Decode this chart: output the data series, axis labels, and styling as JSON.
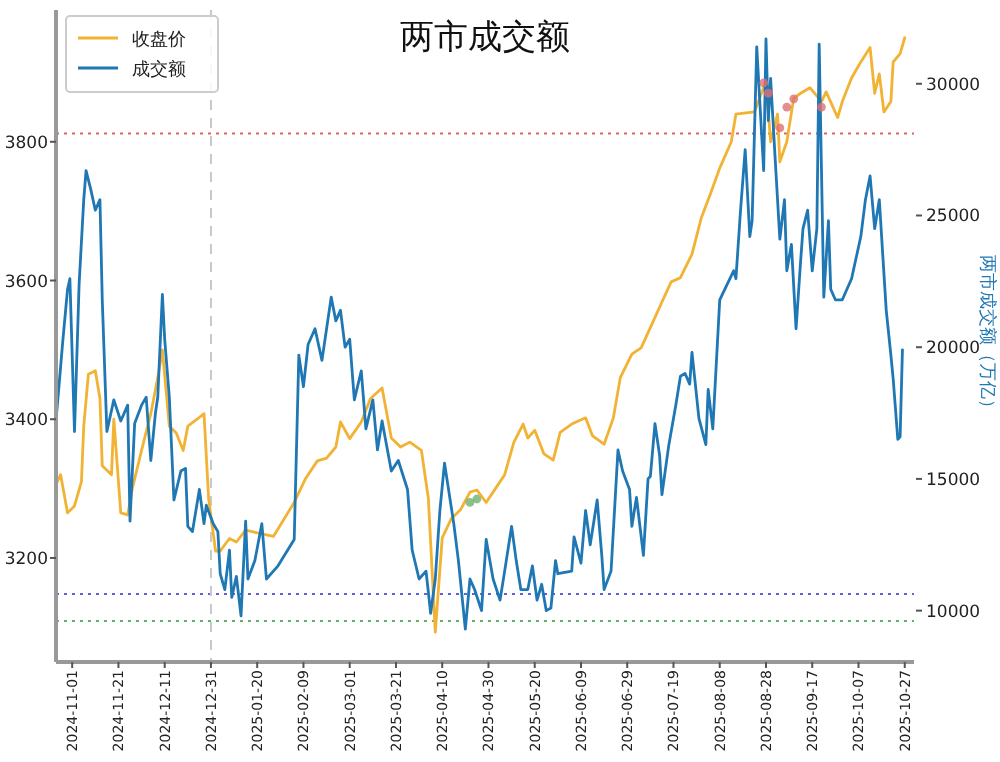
{
  "chart_data": {
    "type": "line",
    "title": "两市成交额",
    "y2label": "两市成交额（万亿）",
    "xlim": [
      "2024-10-25",
      "2025-10-31"
    ],
    "xticks": [
      "2024-11-01",
      "2024-11-21",
      "2024-12-11",
      "2024-12-31",
      "2025-01-20",
      "2025-02-09",
      "2025-03-01",
      "2025-03-21",
      "2025-04-10",
      "2025-04-30",
      "2025-05-20",
      "2025-06-09",
      "2025-06-29",
      "2025-07-19",
      "2025-08-08",
      "2025-08-28",
      "2025-09-17",
      "2025-10-07",
      "2025-10-27"
    ],
    "ylim": [
      3050,
      3990
    ],
    "yticks": [
      3200,
      3400,
      3600,
      3800
    ],
    "y2lim": [
      8050,
      32800
    ],
    "y2ticks": [
      10000,
      15000,
      20000,
      25000,
      30000
    ],
    "legend": "top left",
    "grid": false,
    "line_style": "solid",
    "ref_lines": [
      {
        "axis": "y",
        "value": 3812,
        "color": "#e06060",
        "line_style": "dotted"
      },
      {
        "axis": "y",
        "value": 3148,
        "color": "#6060e0",
        "line_style": "dotted"
      },
      {
        "axis": "y",
        "value": 3109,
        "color": "#60b060",
        "line_style": "dotted"
      },
      {
        "axis": "x",
        "value": "2024-12-31",
        "color": "#c8c8c8",
        "line_style": "dashed"
      }
    ],
    "series": [
      {
        "name": "收盘价",
        "type": "line",
        "color": "#f2b233",
        "x": [
          "2024-10-25",
          "2024-10-27",
          "2024-10-30",
          "2024-11-02",
          "2024-11-05",
          "2024-11-06",
          "2024-11-08",
          "2024-11-11",
          "2024-11-13",
          "2024-11-14",
          "2024-11-18",
          "2024-11-19",
          "2024-11-22",
          "2024-11-25",
          "2024-11-27",
          "2024-12-01",
          "2024-12-05",
          "2024-12-08",
          "2024-12-10",
          "2024-12-13",
          "2024-12-16",
          "2024-12-19",
          "2024-12-21",
          "2024-12-25",
          "2024-12-28",
          "2024-12-30",
          "2025-01-02",
          "2025-01-04",
          "2025-01-08",
          "2025-01-11",
          "2025-01-15",
          "2025-01-27",
          "2025-02-05",
          "2025-02-10",
          "2025-02-15",
          "2025-02-19",
          "2025-02-23",
          "2025-02-25",
          "2025-03-01",
          "2025-03-06",
          "2025-03-10",
          "2025-03-15",
          "2025-03-19",
          "2025-03-23",
          "2025-03-27",
          "2025-04-01",
          "2025-04-04",
          "2025-04-07",
          "2025-04-10",
          "2025-04-14",
          "2025-04-18",
          "2025-04-22",
          "2025-04-25",
          "2025-04-29",
          "2025-05-03",
          "2025-05-07",
          "2025-05-11",
          "2025-05-15",
          "2025-05-17",
          "2025-05-20",
          "2025-05-24",
          "2025-05-28",
          "2025-05-31",
          "2025-06-05",
          "2025-06-11",
          "2025-06-14",
          "2025-06-19",
          "2025-06-23",
          "2025-06-26",
          "2025-07-01",
          "2025-07-05",
          "2025-07-09",
          "2025-07-14",
          "2025-07-18",
          "2025-07-22",
          "2025-07-27",
          "2025-07-31",
          "2025-08-04",
          "2025-08-08",
          "2025-08-13",
          "2025-08-15",
          "2025-08-23",
          "2025-08-28",
          "2025-08-30",
          "2025-09-02",
          "2025-09-03",
          "2025-09-06",
          "2025-09-09",
          "2025-09-12",
          "2025-09-16",
          "2025-09-21",
          "2025-09-23",
          "2025-09-28",
          "2025-09-30",
          "2025-10-04",
          "2025-10-08",
          "2025-10-12",
          "2025-10-14",
          "2025-10-16",
          "2025-10-18",
          "2025-10-21",
          "2025-10-22",
          "2025-10-25",
          "2025-10-27"
        ],
        "values": [
          3306,
          3320,
          3265,
          3275,
          3310,
          3390,
          3465,
          3470,
          3430,
          3333,
          3320,
          3400,
          3265,
          3262,
          3300,
          3355,
          3408,
          3460,
          3500,
          3390,
          3380,
          3355,
          3390,
          3400,
          3408,
          3285,
          3210,
          3210,
          3228,
          3223,
          3240,
          3231,
          3280,
          3315,
          3340,
          3344,
          3360,
          3396,
          3372,
          3396,
          3430,
          3445,
          3373,
          3360,
          3367,
          3355,
          3286,
          3093,
          3229,
          3257,
          3270,
          3295,
          3298,
          3280,
          3300,
          3320,
          3367,
          3393,
          3373,
          3384,
          3350,
          3341,
          3381,
          3393,
          3402,
          3376,
          3364,
          3402,
          3460,
          3494,
          3503,
          3532,
          3569,
          3598,
          3604,
          3638,
          3690,
          3725,
          3762,
          3800,
          3840,
          3843,
          3887,
          3800,
          3840,
          3771,
          3800,
          3863,
          3870,
          3878,
          3858,
          3872,
          3835,
          3858,
          3892,
          3915,
          3936,
          3870,
          3898,
          3843,
          3858,
          3915,
          3927,
          3950
        ]
      },
      {
        "name": "成交额",
        "type": "line",
        "axis": "y2",
        "color": "#1f77b4",
        "x": [
          "2024-10-25",
          "2024-10-28",
          "2024-10-30",
          "2024-10-31",
          "2024-11-02",
          "2024-11-04",
          "2024-11-06",
          "2024-11-07",
          "2024-11-09",
          "2024-11-11",
          "2024-11-13",
          "2024-11-14",
          "2024-11-16",
          "2024-11-19",
          "2024-11-22",
          "2024-11-25",
          "2024-11-26",
          "2024-11-28",
          "2024-12-01",
          "2024-12-03",
          "2024-12-05",
          "2024-12-07",
          "2024-12-08",
          "2024-12-10",
          "2024-12-11",
          "2024-12-13",
          "2024-12-15",
          "2024-12-18",
          "2024-12-20",
          "2024-12-21",
          "2024-12-23",
          "2024-12-26",
          "2024-12-28",
          "2024-12-29",
          "2025-01-01",
          "2025-01-03",
          "2025-01-04",
          "2025-01-06",
          "2025-01-08",
          "2025-01-09",
          "2025-01-11",
          "2025-01-13",
          "2025-01-15",
          "2025-01-16",
          "2025-01-19",
          "2025-01-22",
          "2025-01-24",
          "2025-01-29",
          "2025-02-05",
          "2025-02-07",
          "2025-02-09",
          "2025-02-11",
          "2025-02-14",
          "2025-02-17",
          "2025-02-21",
          "2025-02-23",
          "2025-02-25",
          "2025-02-27",
          "2025-03-01",
          "2025-03-03",
          "2025-03-06",
          "2025-03-08",
          "2025-03-11",
          "2025-03-13",
          "2025-03-15",
          "2025-03-19",
          "2025-03-22",
          "2025-03-26",
          "2025-03-28",
          "2025-03-31",
          "2025-04-03",
          "2025-04-05",
          "2025-04-07",
          "2025-04-09",
          "2025-04-11",
          "2025-04-15",
          "2025-04-17",
          "2025-04-20",
          "2025-04-22",
          "2025-04-24",
          "2025-04-27",
          "2025-04-29",
          "2025-05-02",
          "2025-05-05",
          "2025-05-07",
          "2025-05-10",
          "2025-05-12",
          "2025-05-14",
          "2025-05-17",
          "2025-05-19",
          "2025-05-21",
          "2025-05-23",
          "2025-05-25",
          "2025-05-27",
          "2025-05-29",
          "2025-05-30",
          "2025-06-05",
          "2025-06-06",
          "2025-06-09",
          "2025-06-11",
          "2025-06-13",
          "2025-06-16",
          "2025-06-18",
          "2025-06-19",
          "2025-06-22",
          "2025-06-25",
          "2025-06-27",
          "2025-06-30",
          "2025-07-01",
          "2025-07-03",
          "2025-07-06",
          "2025-07-08",
          "2025-07-09",
          "2025-07-11",
          "2025-07-13",
          "2025-07-14",
          "2025-07-17",
          "2025-07-20",
          "2025-07-22",
          "2025-07-24",
          "2025-07-26",
          "2025-07-27",
          "2025-07-30",
          "2025-08-02",
          "2025-08-03",
          "2025-08-05",
          "2025-08-08",
          "2025-08-14",
          "2025-08-15",
          "2025-08-17",
          "2025-08-19",
          "2025-08-21",
          "2025-08-22",
          "2025-08-24",
          "2025-08-27",
          "2025-08-28",
          "2025-08-29",
          "2025-08-30",
          "2025-09-01",
          "2025-09-03",
          "2025-09-05",
          "2025-09-06",
          "2025-09-08",
          "2025-09-10",
          "2025-09-12",
          "2025-09-13",
          "2025-09-15",
          "2025-09-17",
          "2025-09-19",
          "2025-09-20",
          "2025-09-22",
          "2025-09-24",
          "2025-09-25",
          "2025-09-27",
          "2025-09-30",
          "2025-10-04",
          "2025-10-08",
          "2025-10-10",
          "2025-10-12",
          "2025-10-14",
          "2025-10-16",
          "2025-10-19",
          "2025-10-21",
          "2025-10-22",
          "2025-10-24",
          "2025-10-25",
          "2025-10-26"
        ],
        "values": [
          17200,
          20300,
          22200,
          22600,
          16800,
          22400,
          25600,
          26700,
          26000,
          25200,
          25600,
          21800,
          16800,
          18000,
          17200,
          17800,
          13400,
          17100,
          17800,
          18100,
          15700,
          17500,
          18100,
          22000,
          20300,
          18100,
          14200,
          15300,
          15400,
          13200,
          13000,
          14600,
          13300,
          14000,
          13300,
          13000,
          11400,
          10800,
          12300,
          10500,
          11300,
          9800,
          13400,
          11200,
          11900,
          13300,
          11200,
          11700,
          12700,
          19700,
          18500,
          20100,
          20700,
          19500,
          21900,
          21000,
          21400,
          20000,
          20300,
          18000,
          19100,
          16900,
          18000,
          16100,
          17200,
          15300,
          15700,
          14600,
          12300,
          11200,
          11500,
          9900,
          11200,
          13800,
          15600,
          13300,
          11900,
          9300,
          11200,
          10800,
          10000,
          12700,
          11200,
          10400,
          11500,
          13200,
          11900,
          10800,
          10800,
          11700,
          10400,
          11000,
          10000,
          10100,
          11900,
          11400,
          11500,
          12800,
          11800,
          13800,
          12500,
          14200,
          12100,
          10800,
          11500,
          16100,
          15300,
          14600,
          13200,
          14300,
          12100,
          15000,
          15100,
          17100,
          15900,
          14400,
          16300,
          17800,
          18900,
          19000,
          18600,
          19800,
          17300,
          16300,
          18400,
          16900,
          21800,
          22900,
          22600,
          25200,
          27500,
          24200,
          24800,
          31400,
          26700,
          31700,
          28600,
          30200,
          27100,
          24100,
          25600,
          22900,
          23900,
          20700,
          23300,
          24500,
          25200,
          22900,
          24500,
          31500,
          21900,
          24800,
          22200,
          21800,
          21800,
          22600,
          24200,
          25600,
          26500,
          24500,
          25600,
          21400,
          19700,
          18800,
          16500,
          16600,
          19900
        ]
      },
      {
        "type": "scatter",
        "color": "#e07070",
        "marker": "circle",
        "x": [
          "2025-08-27",
          "2025-08-29",
          "2025-09-03",
          "2025-09-06",
          "2025-09-09",
          "2025-09-21"
        ],
        "values": [
          3885,
          3870,
          3820,
          3850,
          3862,
          3850
        ]
      },
      {
        "type": "scatter",
        "color": "#70b070",
        "marker": "circle",
        "x": [
          "2025-04-22",
          "2025-04-25"
        ],
        "values": [
          3280,
          3285
        ]
      }
    ]
  }
}
